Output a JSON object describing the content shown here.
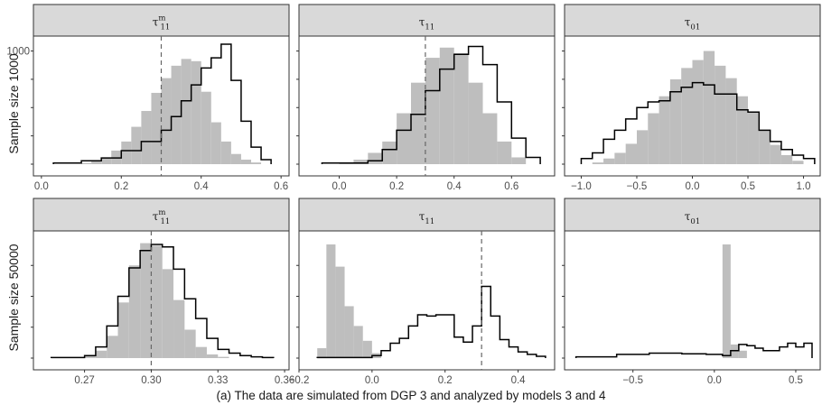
{
  "caption": "(a) The data are simulated from DGP 3 and analyzed by models 3 and 4",
  "colors": {
    "filled_hist": "#bebebe",
    "step_line": "#000000",
    "reference_line": "#666666",
    "strip_bg": "#d9d9d9",
    "panel_border": "#333333"
  },
  "chart_data": [
    {
      "type": "histogram",
      "row_label": "Sample size 1000",
      "strip": {
        "base": "τ",
        "sub": "11",
        "sup": "m"
      },
      "xlim": [
        -0.02,
        0.62
      ],
      "ymax": 1100,
      "xticks": [
        0.0,
        0.2,
        0.4,
        0.6
      ],
      "xtick_labels": [
        "0.0",
        "0.2",
        "0.4",
        "0.6"
      ],
      "yticks": [
        0,
        250,
        500,
        750,
        1000
      ],
      "ytick_labels": [
        "",
        "",
        "",
        "",
        "1000"
      ],
      "reference_x": 0.3,
      "filled": {
        "breaks": [
          0.1,
          0.125,
          0.15,
          0.175,
          0.2,
          0.225,
          0.25,
          0.275,
          0.3,
          0.325,
          0.35,
          0.375,
          0.4,
          0.425,
          0.45,
          0.475,
          0.5,
          0.525,
          0.55
        ],
        "counts": [
          10,
          30,
          60,
          120,
          200,
          330,
          470,
          630,
          760,
          870,
          930,
          910,
          640,
          370,
          200,
          90,
          40,
          15
        ]
      },
      "step": {
        "breaks": [
          0.03,
          0.1,
          0.15,
          0.2,
          0.25,
          0.3,
          0.325,
          0.35,
          0.375,
          0.4,
          0.425,
          0.45,
          0.475,
          0.5,
          0.525,
          0.55,
          0.575
        ],
        "counts": [
          10,
          30,
          55,
          120,
          200,
          300,
          420,
          560,
          700,
          850,
          940,
          1060,
          740,
          380,
          150,
          40
        ]
      }
    },
    {
      "type": "histogram",
      "row_label": "",
      "strip": {
        "base": "τ",
        "sub": "11",
        "sup": ""
      },
      "xlim": [
        -0.14,
        0.75
      ],
      "ymax": 1100,
      "xticks": [
        0.0,
        0.2,
        0.4,
        0.6
      ],
      "xtick_labels": [
        "0.0",
        "0.2",
        "0.4",
        "0.6"
      ],
      "yticks": [
        0,
        250,
        500,
        750,
        1000
      ],
      "ytick_labels": [
        "",
        "",
        "",
        "",
        ""
      ],
      "reference_x": 0.3,
      "filled": {
        "breaks": [
          0.0,
          0.05,
          0.1,
          0.15,
          0.2,
          0.25,
          0.3,
          0.35,
          0.4,
          0.45,
          0.5,
          0.55,
          0.6,
          0.65
        ],
        "counts": [
          10,
          40,
          100,
          200,
          450,
          720,
          940,
          1030,
          980,
          720,
          450,
          200,
          60
        ]
      },
      "step": {
        "breaks": [
          -0.06,
          0.1,
          0.15,
          0.2,
          0.25,
          0.3,
          0.35,
          0.4,
          0.45,
          0.5,
          0.55,
          0.6,
          0.65,
          0.7
        ],
        "counts": [
          10,
          30,
          130,
          300,
          440,
          650,
          840,
          970,
          1040,
          880,
          550,
          230,
          60
        ]
      }
    },
    {
      "type": "histogram",
      "row_label": "",
      "strip": {
        "base": "τ",
        "sub": "01",
        "sup": ""
      },
      "xlim": [
        -1.15,
        1.15
      ],
      "ymax": 1100,
      "xticks": [
        -1.0,
        -0.5,
        0.0,
        0.5,
        1.0
      ],
      "xtick_labels": [
        "−1.0",
        "−0.5",
        "0.0",
        "0.5",
        "1.0"
      ],
      "yticks": [
        0,
        250,
        500,
        750,
        1000
      ],
      "ytick_labels": [
        "",
        "",
        "",
        "",
        ""
      ],
      "reference_x": null,
      "filled": {
        "breaks": [
          -0.9,
          -0.8,
          -0.7,
          -0.6,
          -0.5,
          -0.4,
          -0.3,
          -0.2,
          -0.1,
          0.0,
          0.1,
          0.2,
          0.3,
          0.4,
          0.5,
          0.6,
          0.7,
          0.8,
          0.9,
          1.0
        ],
        "counts": [
          15,
          50,
          100,
          180,
          300,
          450,
          600,
          750,
          850,
          920,
          1000,
          870,
          760,
          600,
          460,
          300,
          170,
          80,
          30
        ]
      },
      "step": {
        "breaks": [
          -1.0,
          -0.9,
          -0.8,
          -0.7,
          -0.6,
          -0.5,
          -0.4,
          -0.3,
          -0.2,
          -0.1,
          0.0,
          0.1,
          0.2,
          0.3,
          0.4,
          0.5,
          0.6,
          0.7,
          0.8,
          0.9,
          1.0,
          1.1
        ],
        "counts": [
          50,
          100,
          220,
          300,
          400,
          500,
          550,
          560,
          640,
          680,
          720,
          700,
          620,
          620,
          480,
          460,
          300,
          200,
          130,
          80,
          50
        ]
      }
    },
    {
      "type": "histogram",
      "row_label": "Sample size 50000",
      "strip": {
        "base": "τ",
        "sub": "11",
        "sup": "m"
      },
      "xlim": [
        0.247,
        0.362
      ],
      "ymax": 1000,
      "xticks": [
        0.27,
        0.3,
        0.33,
        0.36
      ],
      "xtick_labels": [
        "0.27",
        "0.30",
        "0.33",
        "0.36"
      ],
      "yticks": [
        0,
        250,
        500,
        750
      ],
      "ytick_labels": [
        "",
        "",
        "",
        ""
      ],
      "reference_x": 0.3,
      "filled": {
        "breaks": [
          0.27,
          0.275,
          0.28,
          0.285,
          0.29,
          0.295,
          0.3,
          0.305,
          0.31,
          0.315,
          0.32,
          0.325,
          0.33,
          0.335
        ],
        "counts": [
          15,
          60,
          180,
          450,
          750,
          930,
          910,
          720,
          470,
          230,
          90,
          30,
          10
        ]
      },
      "step": {
        "breaks": [
          0.255,
          0.27,
          0.275,
          0.28,
          0.285,
          0.29,
          0.295,
          0.3,
          0.305,
          0.31,
          0.315,
          0.32,
          0.325,
          0.33,
          0.335,
          0.34,
          0.345,
          0.35,
          0.355
        ],
        "counts": [
          5,
          20,
          90,
          260,
          500,
          730,
          870,
          920,
          900,
          720,
          480,
          320,
          160,
          70,
          40,
          20,
          10,
          5
        ]
      }
    },
    {
      "type": "histogram",
      "row_label": "",
      "strip": {
        "base": "τ",
        "sub": "11",
        "sup": ""
      },
      "xlim": [
        -0.2,
        0.5
      ],
      "ymax": 1000,
      "xticks": [
        -0.2,
        0.0,
        0.2,
        0.4
      ],
      "xtick_labels": [
        "−0.2",
        "0.0",
        "0.2",
        "0.4"
      ],
      "yticks": [
        0,
        250,
        500,
        750
      ],
      "ytick_labels": [
        "",
        "",
        "",
        ""
      ],
      "reference_x": 0.3,
      "filled": {
        "breaks": [
          -0.15,
          -0.125,
          -0.1,
          -0.075,
          -0.05,
          -0.025,
          0.0,
          0.025
        ],
        "counts": [
          80,
          920,
          740,
          420,
          260,
          140,
          40
        ]
      },
      "step": {
        "breaks": [
          -0.15,
          0.0,
          0.025,
          0.05,
          0.075,
          0.1,
          0.125,
          0.15,
          0.175,
          0.2,
          0.225,
          0.25,
          0.275,
          0.3,
          0.325,
          0.35,
          0.375,
          0.4,
          0.425,
          0.45,
          0.475
        ],
        "counts": [
          5,
          20,
          60,
          120,
          160,
          260,
          350,
          340,
          350,
          350,
          170,
          130,
          260,
          580,
          340,
          150,
          90,
          50,
          30,
          15
        ]
      }
    },
    {
      "type": "histogram",
      "row_label": "",
      "strip": {
        "base": "τ",
        "sub": "01",
        "sup": ""
      },
      "xlim": [
        -0.92,
        0.65
      ],
      "ymax": 1000,
      "xticks": [
        -0.5,
        0.0,
        0.5
      ],
      "xtick_labels": [
        "−0.5",
        "0.0",
        "0.5"
      ],
      "yticks": [
        0,
        250,
        500,
        750
      ],
      "ytick_labels": [
        "",
        "",
        "",
        ""
      ],
      "reference_x": null,
      "filled": {
        "breaks": [
          0.05,
          0.1,
          0.15,
          0.2
        ],
        "counts": [
          920,
          110,
          60
        ]
      },
      "step": {
        "breaks": [
          -0.85,
          -0.6,
          -0.4,
          -0.2,
          -0.05,
          0.05,
          0.1,
          0.15,
          0.2,
          0.25,
          0.3,
          0.35,
          0.4,
          0.45,
          0.5,
          0.55,
          0.6
        ],
        "counts": [
          10,
          30,
          40,
          35,
          30,
          20,
          60,
          110,
          100,
          80,
          60,
          60,
          90,
          120,
          90,
          120
        ]
      }
    }
  ]
}
